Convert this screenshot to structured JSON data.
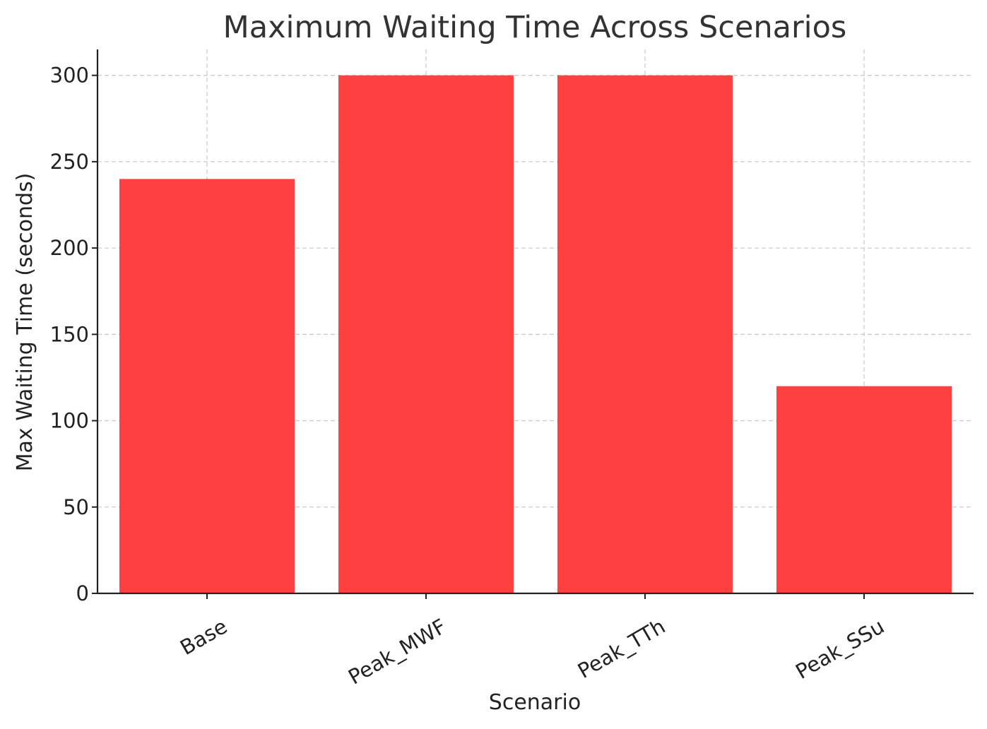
{
  "chart_data": {
    "type": "bar",
    "title": "Maximum Waiting Time Across Scenarios",
    "xlabel": "Scenario",
    "ylabel": "Max Waiting Time (seconds)",
    "categories": [
      "Base",
      "Peak_MWF",
      "Peak_TTh",
      "Peak_SSu"
    ],
    "values": [
      240,
      300,
      300,
      120
    ],
    "ylim": [
      0,
      315
    ],
    "yticks": [
      0,
      50,
      100,
      150,
      200,
      250,
      300
    ],
    "ytick_labels": [
      "0",
      "50",
      "100",
      "150",
      "200",
      "250",
      "300"
    ],
    "bar_color": "#ff4040",
    "grid": true,
    "grid_style": "dashed",
    "legend": false
  }
}
